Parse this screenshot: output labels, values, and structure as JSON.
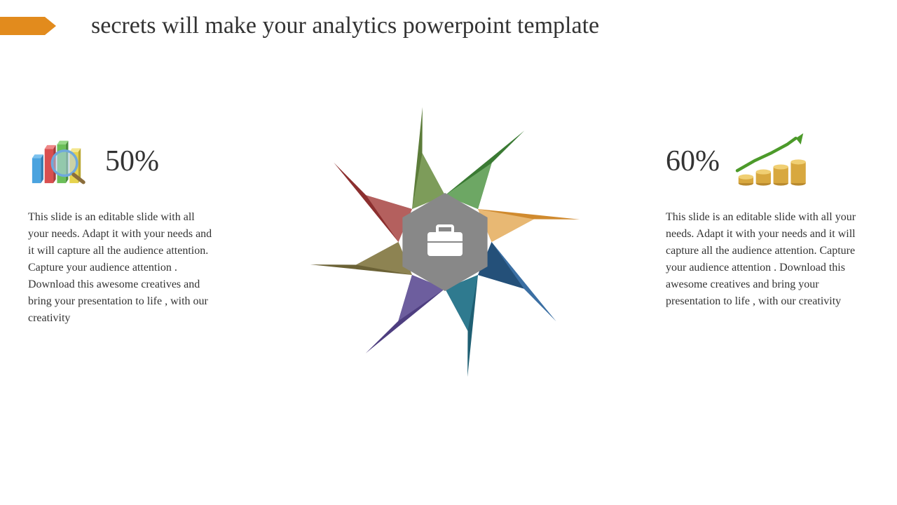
{
  "title": "secrets will make your analytics powerpoint template",
  "title_color": "#333333",
  "title_fontsize": 34,
  "arrow_color": "#e28b1d",
  "left": {
    "percent": "50%",
    "body": "This slide is an editable slide with all your needs. Adapt it with your needs and it will capture all the audience attention. Capture your audience attention . Download this awesome creatives and bring your presentation to life , with our creativity"
  },
  "right": {
    "percent": "60%",
    "body": "This slide is an editable slide with all your needs. Adapt it with your needs and it will capture all the audience attention. Capture your audience attention . Download this awesome creatives and bring your presentation to life , with our creativity"
  },
  "body_fontsize": 16,
  "pct_fontsize": 42,
  "chart_bars": {
    "colors": [
      "#4aa3df",
      "#d94f4f",
      "#6bbf59",
      "#e6d34d"
    ],
    "heights": [
      40,
      55,
      62,
      48
    ],
    "mag_glass_color": "#6fa8dc",
    "mag_handle_color": "#8a6d3b"
  },
  "coins_chart": {
    "coin_color": "#d8a83f",
    "coin_shine": "#f0cf73",
    "stacks": [
      2,
      3,
      4,
      5
    ],
    "arrow_color": "#4c9a2a"
  },
  "pinwheel": {
    "segments": [
      {
        "main": "#3a7a33",
        "shade": "#6da764"
      },
      {
        "main": "#d08a2e",
        "shade": "#e8b873"
      },
      {
        "main": "#3b6fa3",
        "shade": "#245079"
      },
      {
        "main": "#1f5f73",
        "shade": "#2f7a8f"
      },
      {
        "main": "#4e3e80",
        "shade": "#6d5e9e"
      },
      {
        "main": "#6b6236",
        "shade": "#8d8352"
      },
      {
        "main": "#8c2f2f",
        "shade": "#b4605e"
      },
      {
        "main": "#5c7c3a",
        "shade": "#7d9c5a"
      }
    ],
    "center_color": "#888888",
    "icon_color": "#ffffff"
  }
}
